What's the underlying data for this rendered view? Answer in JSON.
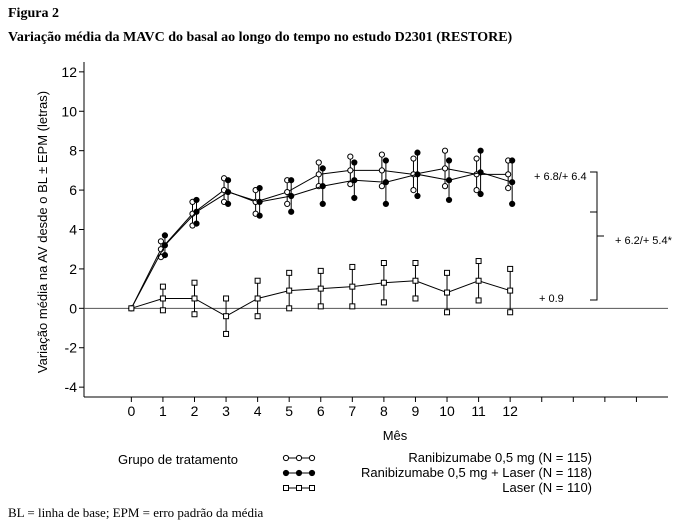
{
  "figure_label": "Figura 2",
  "title": "Variação média da MAVC do basal ao longo do tempo no estudo D2301 (RESTORE)",
  "footnote": "BL = linha de base; EPM = erro padrão da média",
  "chart_data": {
    "type": "line",
    "xlabel": "Mês",
    "ylabel": "Variação média na AV desde o BL ± EPM (letras)",
    "x": [
      0,
      1,
      2,
      3,
      4,
      5,
      6,
      7,
      8,
      9,
      10,
      11,
      12
    ],
    "xlim": [
      -1.5,
      17
    ],
    "ylim": [
      -4.5,
      12.5
    ],
    "yticks": [
      -4,
      -2,
      0,
      2,
      4,
      6,
      8,
      10,
      12
    ],
    "xticks": [
      0,
      1,
      2,
      3,
      4,
      5,
      6,
      7,
      8,
      9,
      10,
      11,
      12
    ],
    "grid": false,
    "legend_title": "Grupo de tratamento",
    "legend_position": "bottom",
    "series": [
      {
        "name": "Ranibizumabe 0,5 mg (N = 115)",
        "marker": "open-circle",
        "values": [
          0,
          3.0,
          4.8,
          6.0,
          5.4,
          5.9,
          6.8,
          7.0,
          7.0,
          6.8,
          7.1,
          6.8,
          6.8
        ],
        "error": [
          0,
          0.4,
          0.6,
          0.6,
          0.6,
          0.6,
          0.6,
          0.7,
          0.8,
          0.8,
          0.9,
          0.8,
          0.7
        ]
      },
      {
        "name": "Ranibizumabe 0,5 mg + Laser (N = 118)",
        "marker": "filled-circle",
        "values": [
          0,
          3.2,
          4.9,
          5.9,
          5.4,
          5.7,
          6.2,
          6.5,
          6.4,
          6.8,
          6.5,
          6.9,
          6.4
        ],
        "error": [
          0,
          0.5,
          0.6,
          0.6,
          0.7,
          0.8,
          0.9,
          0.9,
          1.1,
          1.1,
          1.0,
          1.1,
          1.1
        ]
      },
      {
        "name": "Laser (N = 110)",
        "marker": "open-square",
        "values": [
          0,
          0.5,
          0.5,
          -0.4,
          0.5,
          0.9,
          1.0,
          1.1,
          1.3,
          1.4,
          0.8,
          1.4,
          0.9
        ],
        "error": [
          0,
          0.6,
          0.8,
          0.9,
          0.9,
          0.9,
          0.9,
          1.0,
          1.0,
          0.9,
          1.0,
          1.0,
          1.1
        ]
      }
    ],
    "annotations": {
      "ranibizumab_diff": "+ 6.8/+ 6.4",
      "laser_diff": "+ 0.9",
      "combined_diff": "+ 6.2/+ 5.4*"
    }
  },
  "colors": {
    "line": "#000000",
    "background": "#ffffff"
  }
}
